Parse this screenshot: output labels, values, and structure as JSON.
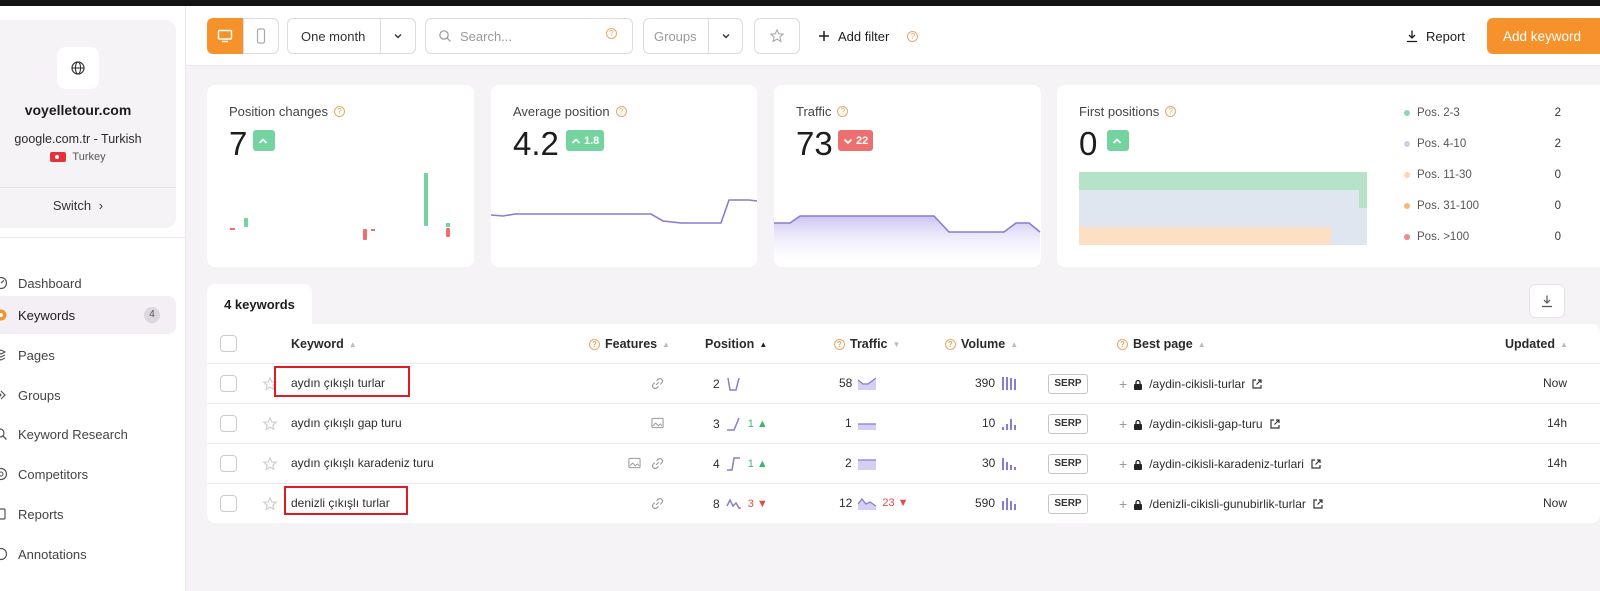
{
  "project": {
    "domain": "voyelletour.com",
    "engine": "google.com.tr - Turkish",
    "country": "Turkey",
    "switch_label": "Switch"
  },
  "nav": {
    "items": [
      {
        "label": "Dashboard",
        "icon": "dashboard-icon"
      },
      {
        "label": "Keywords",
        "icon": "keywords-icon",
        "badge": "4",
        "active": true
      },
      {
        "label": "Pages",
        "icon": "pages-icon"
      },
      {
        "label": "Groups",
        "icon": "groups-icon"
      },
      {
        "label": "Keyword Research",
        "icon": "keyword-research-icon"
      },
      {
        "label": "Competitors",
        "icon": "competitors-icon"
      },
      {
        "label": "Reports",
        "icon": "reports-icon"
      },
      {
        "label": "Annotations",
        "icon": "annotations-icon"
      }
    ]
  },
  "toolbar": {
    "period": "One month",
    "search_placeholder": "Search...",
    "groups_placeholder": "Groups",
    "add_filter": "Add filter",
    "report": "Report",
    "add_keyword": "Add keyword",
    "accent_color": "#f5922b"
  },
  "stats": {
    "position_changes": {
      "title": "Position changes",
      "value": "7"
    },
    "average_position": {
      "title": "Average position",
      "value": "4.2",
      "delta": "1.8"
    },
    "traffic": {
      "title": "Traffic",
      "value": "73",
      "delta": "22"
    },
    "first_positions": {
      "title": "First positions",
      "value": "0",
      "legend": [
        {
          "label": "Pos. 2-3",
          "count": "2",
          "color": "#8ed6ad"
        },
        {
          "label": "Pos. 4-10",
          "count": "2",
          "color": "#c7d4e6"
        },
        {
          "label": "Pos. 11-30",
          "count": "0",
          "color": "#fbd7b1"
        },
        {
          "label": "Pos. 31-100",
          "count": "0",
          "color": "#f5b97e"
        },
        {
          "label": "Pos. >100",
          "count": "0",
          "color": "#ef8b8b"
        }
      ]
    }
  },
  "table": {
    "tab_label": "4 keywords",
    "headers": {
      "keyword": "Keyword",
      "features": "Features",
      "position": "Position",
      "traffic": "Traffic",
      "volume": "Volume",
      "best_page": "Best page",
      "updated": "Updated"
    },
    "serp_label": "SERP",
    "rows": [
      {
        "keyword": "aydın çıkışlı turlar",
        "position": "2",
        "position_delta": "",
        "traffic": "58",
        "traffic_delta": "",
        "volume": "390",
        "best_page": "/aydin-cikisli-turlar",
        "updated": "Now"
      },
      {
        "keyword": "aydın çıkışlı gap turu",
        "position": "3",
        "position_delta": "1",
        "traffic": "1",
        "traffic_delta": "",
        "volume": "10",
        "best_page": "/aydin-cikisli-gap-turu",
        "updated": "14h"
      },
      {
        "keyword": "aydın çıkışlı karadeniz turu",
        "position": "4",
        "position_delta": "1",
        "traffic": "2",
        "traffic_delta": "",
        "volume": "30",
        "best_page": "/aydin-cikisli-karadeniz-turlari",
        "updated": "14h"
      },
      {
        "keyword": "denizli çıkışlı turlar",
        "position": "8",
        "position_delta": "3",
        "traffic": "12",
        "traffic_delta": "23",
        "volume": "590",
        "best_page": "/denizli-cikisli-gunubirlik-turlar",
        "updated": "Now"
      }
    ]
  }
}
